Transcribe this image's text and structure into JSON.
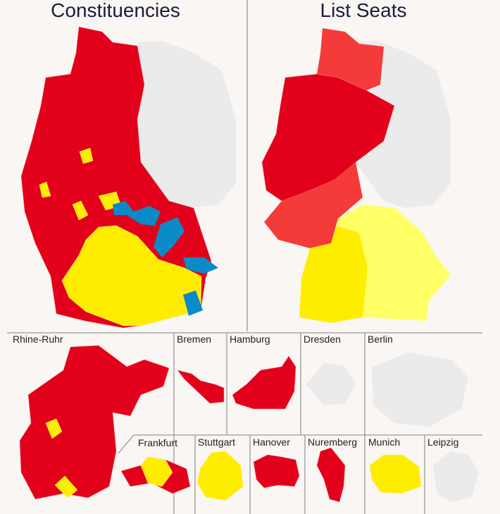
{
  "maps": {
    "constituencies": "Constituencies",
    "list_seats": "List Seats"
  },
  "insets": [
    "Rhine-Ruhr",
    "Bremen",
    "Hamburg",
    "Dresden",
    "Berlin",
    "Frankfurt",
    "Stuttgart",
    "Hanover",
    "Nuremberg",
    "Munich",
    "Leipzig"
  ]
}
